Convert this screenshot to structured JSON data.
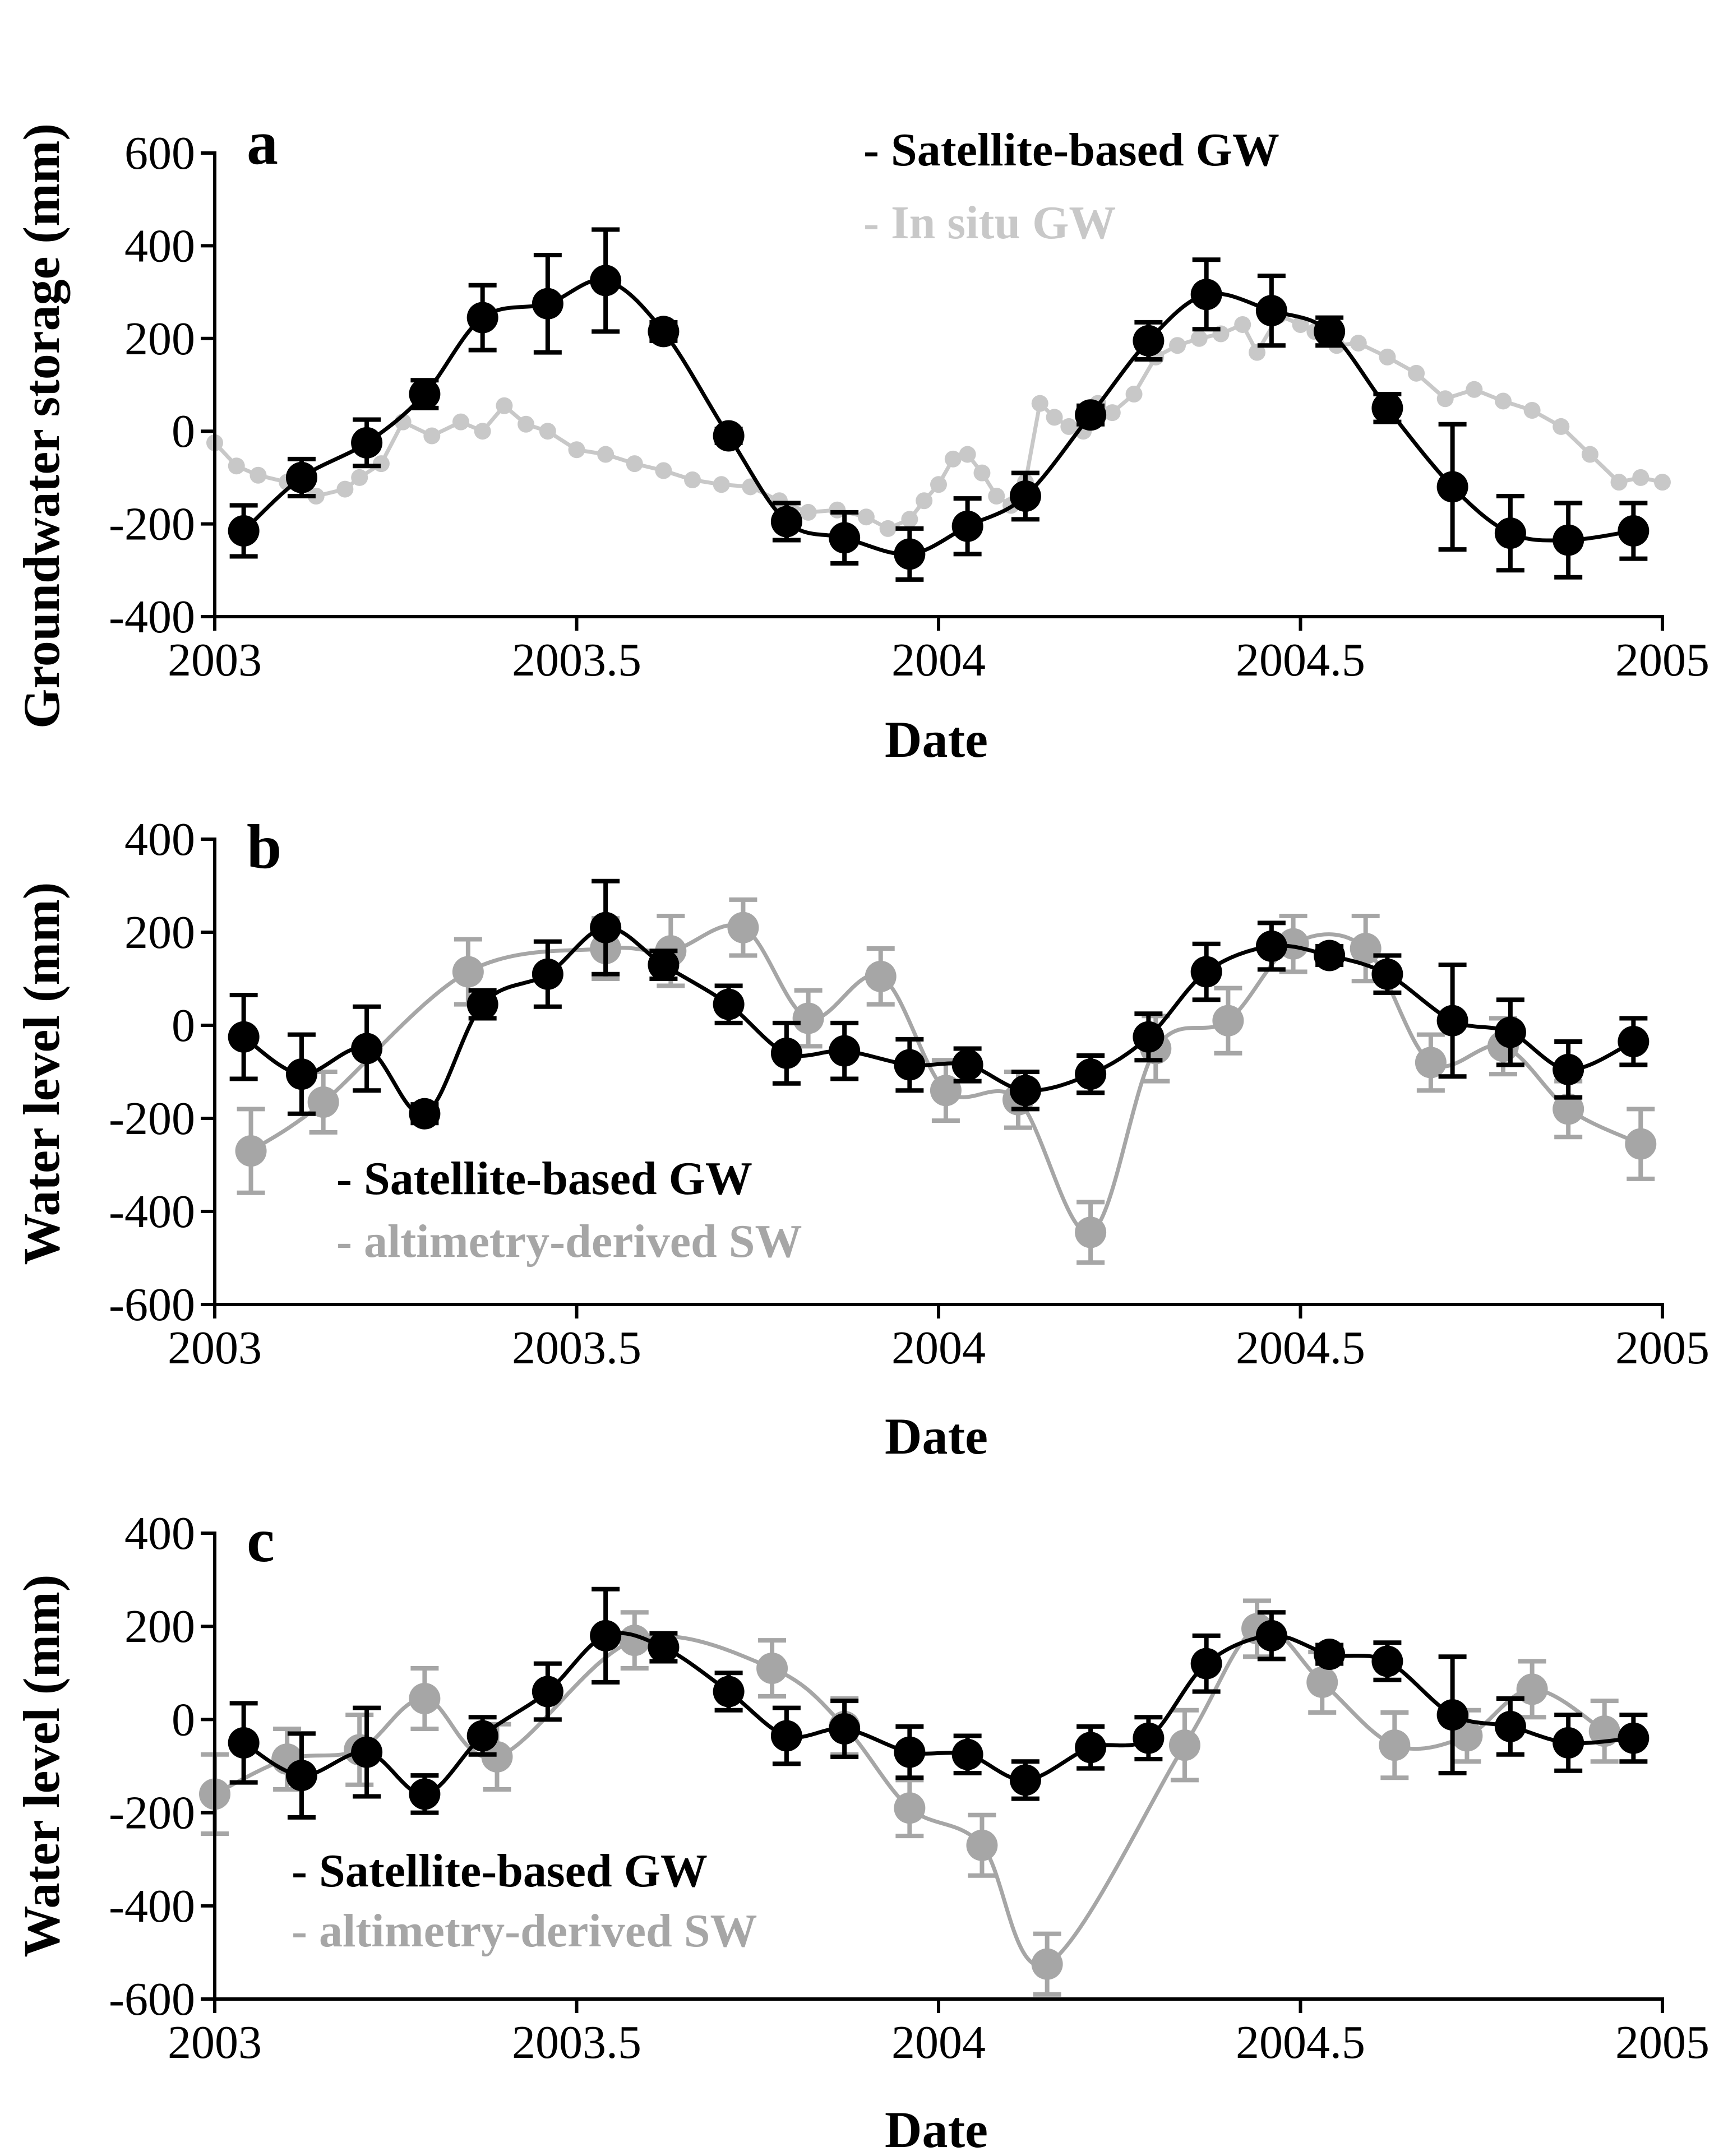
{
  "colors": {
    "black": "#000000",
    "gray": "#a6a6a6",
    "insitu": "#c8c8c8"
  },
  "chart_data": [
    {
      "panel": "a",
      "type": "line",
      "xlabel": "Date",
      "ylabel": "Groundwater storage (mm)",
      "xlim": [
        2003,
        2005
      ],
      "ylim": [
        -400,
        600
      ],
      "xticks": [
        "2003",
        "2003.5",
        "2004",
        "2004.5",
        "2005"
      ],
      "xtick_values": [
        2003,
        2003.5,
        2004,
        2004.5,
        2005
      ],
      "yticks": [
        "-400",
        "-200",
        "0",
        "200",
        "400",
        "600"
      ],
      "ytick_values": [
        -400,
        -200,
        0,
        200,
        400,
        600
      ],
      "legend": [
        "- Satellite-based GW",
        "- In situ GW"
      ],
      "series": [
        {
          "name": "- Satellite-based GW",
          "color": "black",
          "x": [
            2003.04,
            2003.12,
            2003.21,
            2003.29,
            2003.37,
            2003.46,
            2003.54,
            2003.62,
            2003.71,
            2003.79,
            2003.87,
            2003.96,
            2004.04,
            2004.12,
            2004.21,
            2004.29,
            2004.37,
            2004.46,
            2004.54,
            2004.62,
            2004.71,
            2004.79,
            2004.87,
            2004.96
          ],
          "y": [
            -215,
            -100,
            -25,
            80,
            245,
            275,
            325,
            215,
            -10,
            -195,
            -230,
            -265,
            -205,
            -140,
            35,
            195,
            295,
            260,
            215,
            50,
            -120,
            -220,
            -235,
            -215
          ],
          "err": [
            55,
            40,
            50,
            30,
            70,
            105,
            110,
            20,
            15,
            40,
            55,
            55,
            60,
            50,
            20,
            40,
            75,
            75,
            30,
            30,
            135,
            80,
            80,
            60
          ]
        },
        {
          "name": "- In situ GW",
          "color": "insitu",
          "x": [
            2003.0,
            2003.03,
            2003.06,
            2003.1,
            2003.14,
            2003.18,
            2003.2,
            2003.23,
            2003.26,
            2003.3,
            2003.34,
            2003.37,
            2003.4,
            2003.43,
            2003.46,
            2003.5,
            2003.54,
            2003.58,
            2003.62,
            2003.66,
            2003.7,
            2003.74,
            2003.78,
            2003.82,
            2003.86,
            2003.9,
            2003.93,
            2003.96,
            2003.98,
            2004.0,
            2004.02,
            2004.04,
            2004.06,
            2004.08,
            2004.1,
            2004.12,
            2004.14,
            2004.16,
            2004.18,
            2004.2,
            2004.22,
            2004.24,
            2004.27,
            2004.3,
            2004.33,
            2004.36,
            2004.39,
            2004.42,
            2004.44,
            2004.47,
            2004.5,
            2004.52,
            2004.55,
            2004.58,
            2004.62,
            2004.66,
            2004.7,
            2004.74,
            2004.78,
            2004.82,
            2004.86,
            2004.9,
            2004.94,
            2004.97,
            2005.0
          ],
          "y": [
            -25,
            -75,
            -95,
            -110,
            -140,
            -125,
            -100,
            -70,
            20,
            -10,
            20,
            0,
            55,
            15,
            0,
            -40,
            -50,
            -70,
            -85,
            -105,
            -115,
            -120,
            -150,
            -175,
            -170,
            -185,
            -210,
            -190,
            -150,
            -115,
            -60,
            -50,
            -90,
            -140,
            -160,
            -110,
            60,
            30,
            10,
            0,
            60,
            40,
            80,
            160,
            185,
            200,
            210,
            230,
            170,
            250,
            230,
            215,
            185,
            190,
            160,
            125,
            70,
            90,
            65,
            45,
            10,
            -50,
            -110,
            -100,
            -110
          ]
        }
      ]
    },
    {
      "panel": "b",
      "type": "line",
      "xlabel": "Date",
      "ylabel": "Water level (mm)",
      "xlim": [
        2003,
        2005
      ],
      "ylim": [
        -600,
        400
      ],
      "xticks": [
        "2003",
        "2003.5",
        "2004",
        "2004.5",
        "2005"
      ],
      "xtick_values": [
        2003,
        2003.5,
        2004,
        2004.5,
        2005
      ],
      "yticks": [
        "-600",
        "-400",
        "-200",
        "0",
        "200",
        "400"
      ],
      "ytick_values": [
        -600,
        -400,
        -200,
        0,
        200,
        400
      ],
      "legend": [
        "- Satellite-based GW",
        "- altimetry-derived SW"
      ],
      "series": [
        {
          "name": "- Satellite-based GW",
          "color": "black",
          "x": [
            2003.04,
            2003.12,
            2003.21,
            2003.29,
            2003.37,
            2003.46,
            2003.54,
            2003.62,
            2003.71,
            2003.79,
            2003.87,
            2003.96,
            2004.04,
            2004.12,
            2004.21,
            2004.29,
            2004.37,
            2004.46,
            2004.54,
            2004.62,
            2004.71,
            2004.79,
            2004.87,
            2004.96
          ],
          "y": [
            -25,
            -105,
            -50,
            -190,
            45,
            110,
            210,
            130,
            45,
            -60,
            -55,
            -85,
            -85,
            -140,
            -105,
            -25,
            115,
            170,
            150,
            110,
            10,
            -15,
            -95,
            -35
          ],
          "err": [
            90,
            85,
            90,
            20,
            30,
            70,
            100,
            30,
            40,
            65,
            60,
            55,
            35,
            40,
            40,
            50,
            60,
            50,
            20,
            40,
            120,
            70,
            60,
            50
          ]
        },
        {
          "name": "- altimetry-derived SW",
          "color": "gray",
          "x": [
            2003.05,
            2003.15,
            2003.35,
            2003.54,
            2003.63,
            2003.73,
            2003.82,
            2003.92,
            2004.01,
            2004.11,
            2004.21,
            2004.3,
            2004.4,
            2004.49,
            2004.59,
            2004.68,
            2004.78,
            2004.87,
            2004.97
          ],
          "y": [
            -270,
            -165,
            115,
            165,
            160,
            210,
            15,
            105,
            -140,
            -160,
            -445,
            -50,
            10,
            175,
            165,
            -80,
            -45,
            -180,
            -255
          ],
          "err": [
            90,
            65,
            70,
            65,
            75,
            60,
            60,
            60,
            65,
            60,
            65,
            70,
            70,
            60,
            70,
            60,
            60,
            60,
            75
          ]
        }
      ]
    },
    {
      "panel": "c",
      "type": "line",
      "xlabel": "Date",
      "ylabel": "Water level (mm)",
      "xlim": [
        2003,
        2005
      ],
      "ylim": [
        -600,
        400
      ],
      "xticks": [
        "2003",
        "2003.5",
        "2004",
        "2004.5",
        "2005"
      ],
      "xtick_values": [
        2003,
        2003.5,
        2004,
        2004.5,
        2005
      ],
      "yticks": [
        "-600",
        "-400",
        "-200",
        "0",
        "200",
        "400"
      ],
      "ytick_values": [
        -600,
        -400,
        -200,
        0,
        200,
        400
      ],
      "legend": [
        "- Satellite-based GW",
        "- altimetry-derived SW"
      ],
      "series": [
        {
          "name": "- Satellite-based GW",
          "color": "black",
          "x": [
            2003.04,
            2003.12,
            2003.21,
            2003.29,
            2003.37,
            2003.46,
            2003.54,
            2003.62,
            2003.71,
            2003.79,
            2003.87,
            2003.96,
            2004.04,
            2004.12,
            2004.21,
            2004.29,
            2004.37,
            2004.46,
            2004.54,
            2004.62,
            2004.71,
            2004.79,
            2004.87,
            2004.96
          ],
          "y": [
            -50,
            -120,
            -70,
            -160,
            -35,
            60,
            180,
            155,
            60,
            -35,
            -20,
            -70,
            -75,
            -130,
            -60,
            -40,
            120,
            180,
            140,
            125,
            10,
            -15,
            -50,
            -40
          ],
          "err": [
            85,
            90,
            95,
            40,
            40,
            60,
            100,
            30,
            40,
            60,
            60,
            55,
            40,
            40,
            45,
            45,
            60,
            50,
            20,
            40,
            125,
            60,
            60,
            50
          ]
        },
        {
          "name": "- altimetry-derived SW",
          "color": "gray",
          "x": [
            2003.0,
            2003.1,
            2003.2,
            2003.29,
            2003.39,
            2003.58,
            2003.77,
            2003.87,
            2003.96,
            2004.06,
            2004.15,
            2004.34,
            2004.44,
            2004.53,
            2004.63,
            2004.73,
            2004.82,
            2004.92
          ],
          "y": [
            -160,
            -85,
            -65,
            45,
            -80,
            170,
            110,
            -15,
            -190,
            -270,
            -525,
            -55,
            195,
            80,
            -55,
            -35,
            65,
            -25
          ],
          "err": [
            85,
            65,
            75,
            65,
            70,
            60,
            60,
            60,
            60,
            65,
            65,
            75,
            60,
            65,
            70,
            55,
            60,
            65
          ]
        }
      ]
    }
  ]
}
